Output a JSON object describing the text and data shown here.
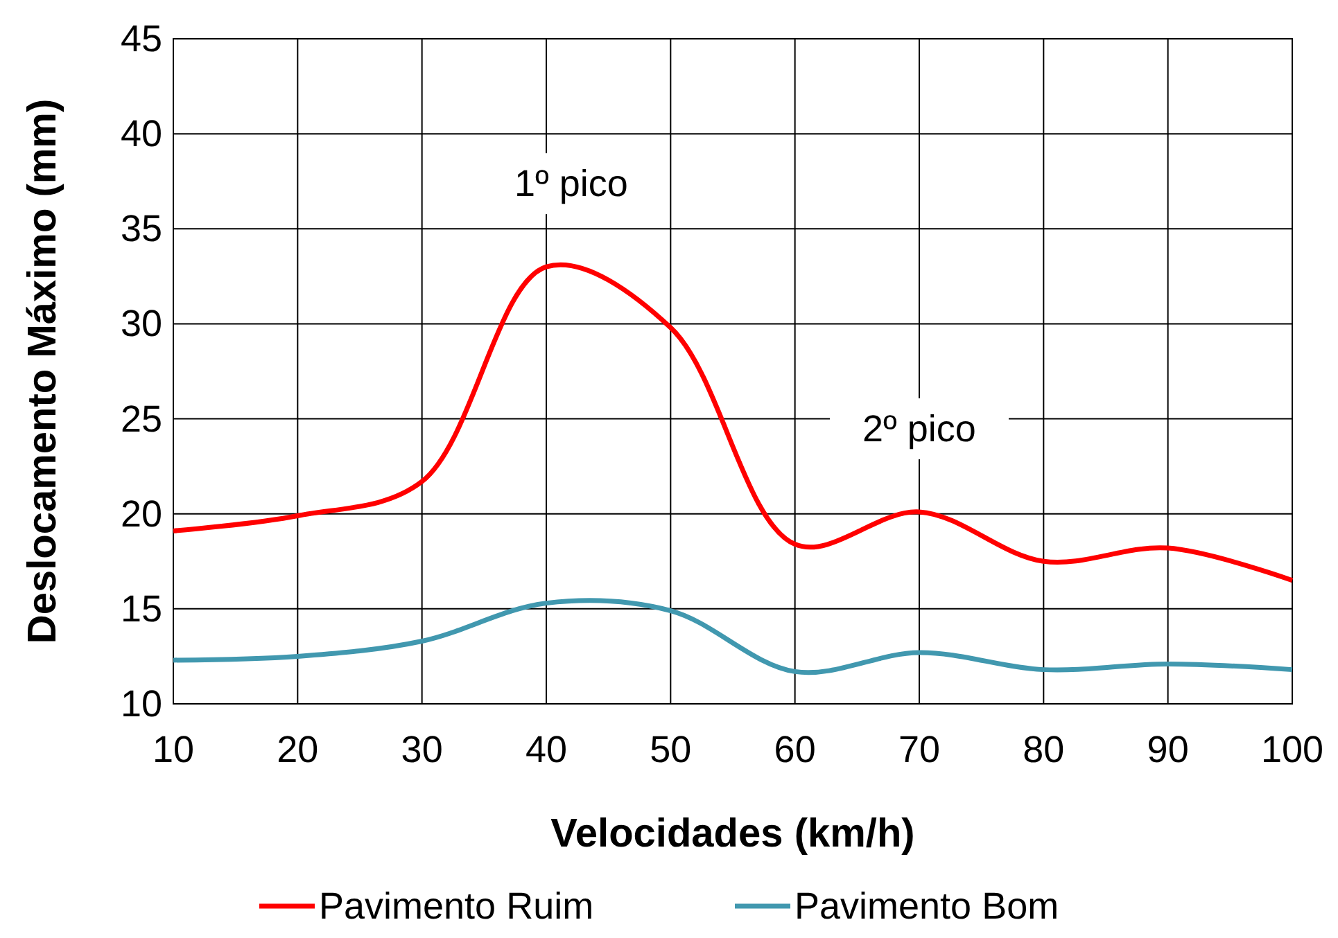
{
  "chart_data": {
    "type": "line",
    "xlabel": "Velocidades (km/h)",
    "ylabel": "Deslocamento Máximo (mm)",
    "x": [
      10,
      20,
      30,
      40,
      50,
      60,
      70,
      80,
      90,
      100
    ],
    "series": [
      {
        "name": "Pavimento Ruim",
        "color": "#ff0000",
        "values": [
          19.1,
          19.9,
          21.7,
          33,
          29.8,
          18.4,
          20.1,
          17.5,
          18.2,
          16.5
        ]
      },
      {
        "name": "Pavimento Bom",
        "color": "#4198af",
        "values": [
          12.3,
          12.5,
          13.3,
          15.3,
          14.9,
          11.7,
          12.7,
          11.8,
          12.1,
          11.8
        ]
      }
    ],
    "xlim": [
      10,
      100
    ],
    "xticks": [
      10,
      20,
      30,
      40,
      50,
      60,
      70,
      80,
      90,
      100
    ],
    "ylim": [
      10,
      45
    ],
    "yticks": [
      10,
      15,
      20,
      25,
      30,
      35,
      40,
      45
    ],
    "grid": true,
    "legend": "bottom",
    "marker": "none",
    "line_style": "solid",
    "annotations": [
      "1º pico",
      "2º pico"
    ]
  }
}
